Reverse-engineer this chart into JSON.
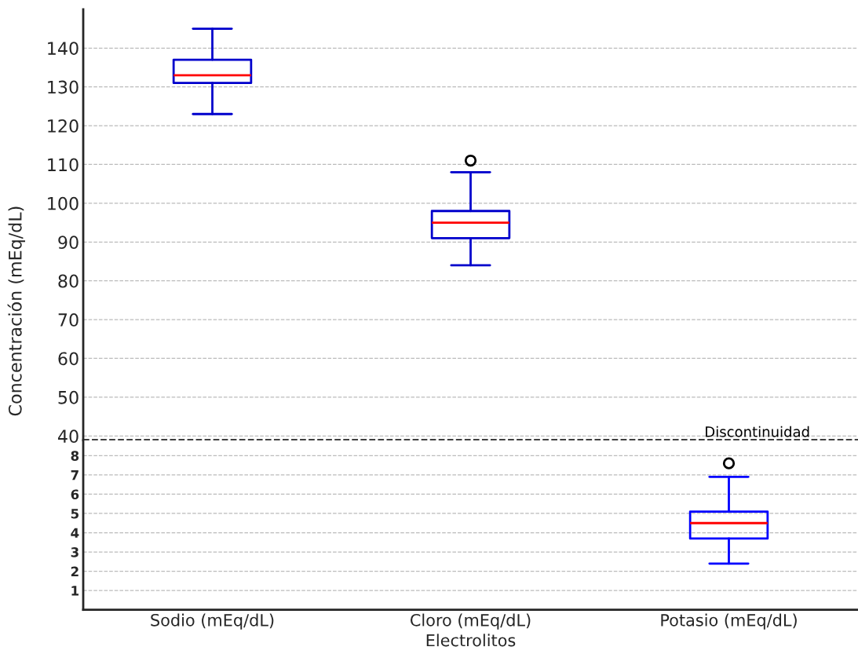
{
  "chart_data": [
    {
      "type": "box",
      "ylabel": "Concentración (mEq/dL)",
      "ylim": [
        38.9,
        150
      ],
      "yticks": [
        40,
        50,
        60,
        70,
        80,
        90,
        100,
        110,
        120,
        130,
        140
      ],
      "grid": "y",
      "tick_labels": "y",
      "series": [
        {
          "color": "#0000cc",
          "boxes": [
            {
              "low": 123,
              "q1": 131,
              "median": 133,
              "q3": 137,
              "high": 145
            },
            {
              "low": 84,
              "q1": 91,
              "median": 95,
              "q3": 98,
              "high": 108,
              "outliers": [
                111
              ]
            },
            null
          ]
        }
      ],
      "ref_lines": [
        {
          "axis": "y",
          "value": 39,
          "label": "Discontinuidad",
          "color": "#000000",
          "line_style": "dashed"
        }
      ]
    },
    {
      "type": "box",
      "categories": [
        "Sodio (mEq/dL)",
        "Cloro (mEq/dL)",
        "Potasio (mEq/dL)"
      ],
      "xlabel": "Electrolitos",
      "ylim": [
        0,
        8.8
      ],
      "yticks": [
        1,
        2,
        3,
        4,
        5,
        6,
        7,
        8
      ],
      "grid": "y",
      "series": [
        {
          "color": "#0000ff",
          "boxes": [
            null,
            null,
            {
              "low": 2.4,
              "q1": 3.7,
              "median": 4.5,
              "q3": 5.1,
              "high": 6.9,
              "outliers": [
                7.6
              ]
            }
          ]
        }
      ]
    }
  ]
}
